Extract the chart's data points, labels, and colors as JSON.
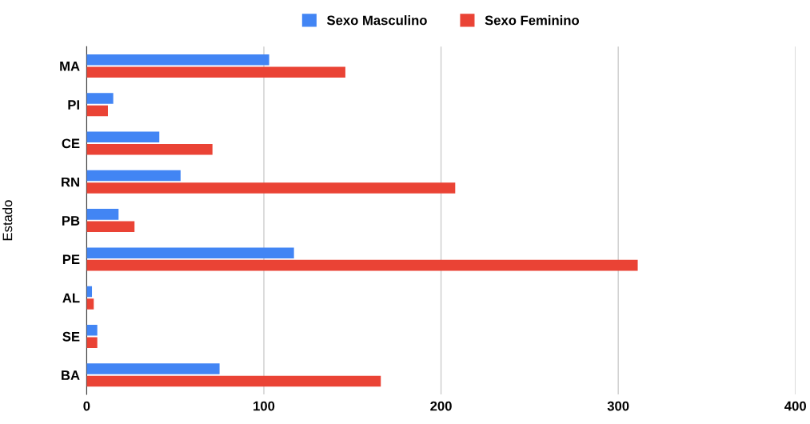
{
  "chart_data": {
    "type": "bar",
    "orientation": "horizontal",
    "ylabel": "Estado",
    "categories": [
      "MA",
      "PI",
      "CE",
      "RN",
      "PB",
      "PE",
      "AL",
      "SE",
      "BA"
    ],
    "series": [
      {
        "name": "Sexo Masculino",
        "color": "#4285f4",
        "values": [
          103,
          15,
          41,
          53,
          18,
          117,
          3,
          6,
          75
        ]
      },
      {
        "name": "Sexo Feminino",
        "color": "#ea4335",
        "values": [
          146,
          12,
          71,
          208,
          27,
          311,
          4,
          6,
          166
        ]
      }
    ],
    "xlim": [
      0,
      400
    ],
    "xticks": [
      0,
      100,
      200,
      300,
      400
    ],
    "grid": "x",
    "legend": "top"
  }
}
